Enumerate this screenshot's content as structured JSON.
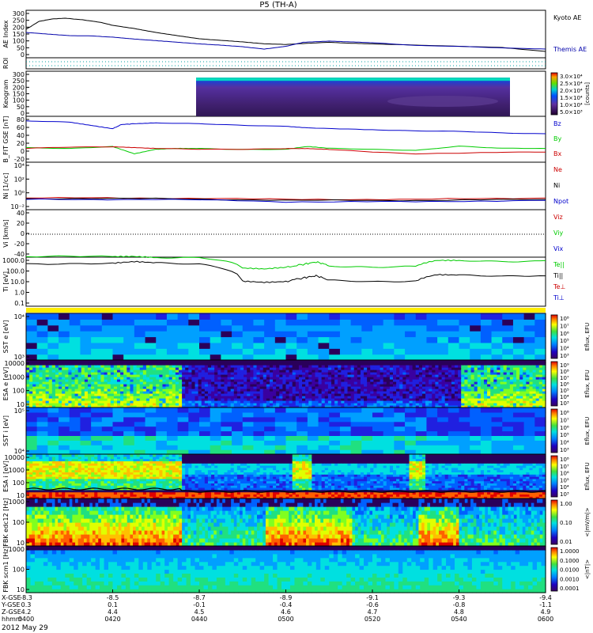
{
  "chart_data": {
    "type": "multi-panel",
    "title": "P5 (TH-A)",
    "date_label": "2012 May 29",
    "x_axis": {
      "rows": [
        {
          "label": "X-GSE",
          "values": [
            "-8.3",
            "-8.5",
            "-8.7",
            "-8.9",
            "-9.1",
            "-9.3",
            "-9.4"
          ]
        },
        {
          "label": "Y-GSE",
          "values": [
            "0.3",
            "0.1",
            "-0.1",
            "-0.4",
            "-0.6",
            "-0.8",
            "-1.1"
          ]
        },
        {
          "label": "Z-GSE",
          "values": [
            "4.2",
            "4.4",
            "4.5",
            "4.6",
            "4.7",
            "4.8",
            "4.9"
          ]
        },
        {
          "label": "hhmm",
          "values": [
            "0400",
            "0420",
            "0440",
            "0500",
            "0520",
            "0540",
            "0600"
          ]
        }
      ]
    },
    "panels": [
      {
        "id": "ae",
        "kind": "line",
        "ylabel": "AE Index",
        "ylim": [
          0,
          300
        ],
        "ticks": [
          "300",
          "250",
          "200",
          "150",
          "100",
          "50",
          "0"
        ],
        "series": [
          {
            "name": "Kyoto AE",
            "color": "#000000",
            "x": [
              0,
              3,
              6,
              9,
              13,
              17,
              20,
              25,
              30,
              35,
              40,
              45,
              50,
              55,
              60,
              64,
              70,
              75,
              80,
              90,
              100,
              110,
              120
            ],
            "y": [
              180,
              230,
              245,
              250,
              240,
              225,
              205,
              185,
              160,
              140,
              120,
              110,
              100,
              88,
              84,
              90,
              98,
              92,
              88,
              80,
              72,
              65,
              40
            ]
          },
          {
            "name": "Themis AE",
            "color": "#0000aa",
            "x": [
              0,
              5,
              10,
              15,
              20,
              25,
              30,
              35,
              40,
              45,
              50,
              55,
              60,
              64,
              70,
              75,
              80,
              90,
              100,
              110,
              120
            ],
            "y": [
              160,
              150,
              140,
              138,
              130,
              118,
              108,
              98,
              88,
              80,
              70,
              55,
              72,
              98,
              105,
              100,
              95,
              78,
              72,
              62,
              55
            ]
          }
        ]
      },
      {
        "id": "roi",
        "kind": "flags",
        "ylabel": "ROI",
        "ticks": []
      },
      {
        "id": "keogram",
        "kind": "image",
        "ylabel": "Keogram",
        "ylim": [
          0,
          300
        ],
        "ticks": [
          "300",
          "250",
          "200",
          "150",
          "100",
          "50",
          "0"
        ],
        "colorbar": {
          "label": "[counts]",
          "ticks": [
            "3.0×10⁴",
            "2.5×10⁴",
            "2.0×10⁴",
            "1.5×10⁴",
            "1.0×10⁴",
            "5.0×10³"
          ]
        },
        "data_coverage": [
          0.41,
          0.88
        ]
      },
      {
        "id": "bfield",
        "kind": "line",
        "ylabel": "B_FIT GSE [nT]",
        "ylim": [
          -20,
          80
        ],
        "ticks": [
          "80",
          "60",
          "40",
          "20",
          "0",
          "-20"
        ],
        "series": [
          {
            "name": "Bz",
            "color": "#0000cc",
            "x": [
              0,
              10,
              15,
              20,
              22,
              25,
              30,
              40,
              50,
              60,
              65,
              80,
              90,
              100,
              110,
              120
            ],
            "y": [
              70,
              67,
              60,
              53,
              62,
              64,
              66,
              64,
              60,
              58,
              55,
              51,
              48,
              47,
              44,
              42
            ]
          },
          {
            "name": "By",
            "color": "#00cc00",
            "x": [
              0,
              10,
              20,
              25,
              30,
              35,
              40,
              50,
              60,
              65,
              70,
              80,
              90,
              100,
              110,
              120
            ],
            "y": [
              12,
              10,
              14,
              -2,
              8,
              10,
              10,
              8,
              8,
              14,
              10,
              8,
              6,
              15,
              10,
              10
            ]
          },
          {
            "name": "Bx",
            "color": "#cc0000",
            "x": [
              0,
              10,
              20,
              25,
              30,
              40,
              50,
              60,
              65,
              70,
              80,
              90,
              100,
              110,
              120
            ],
            "y": [
              10,
              13,
              14,
              12,
              10,
              8,
              8,
              10,
              10,
              8,
              2,
              -2,
              0,
              2,
              2
            ]
          }
        ]
      },
      {
        "id": "density",
        "kind": "line",
        "ylabel": "Ni [1/cc]",
        "ylim_log": [
          0.01,
          10000
        ],
        "ticks": [
          "10⁴",
          "10²",
          "10⁰",
          "10⁻²"
        ],
        "series": [
          {
            "name": "Ne",
            "color": "#cc0000",
            "x": [
              0,
              30,
              60,
              90,
              120
            ],
            "y": [
              0.3,
              0.3,
              0.2,
              0.2,
              0.3
            ]
          },
          {
            "name": "Ni",
            "color": "#000000",
            "x": [
              0,
              30,
              60,
              90,
              120
            ],
            "y": [
              0.25,
              0.25,
              0.15,
              0.15,
              0.2
            ]
          },
          {
            "name": "Npot",
            "color": "#0000cc",
            "x": [
              0,
              30,
              60,
              90,
              120
            ],
            "y": [
              0.2,
              0.2,
              0.1,
              0.1,
              0.15
            ]
          }
        ]
      },
      {
        "id": "velocity",
        "kind": "line",
        "ylabel": "Vi [km/s]",
        "ylim": [
          -50,
          50
        ],
        "ticks": [
          "40",
          "20",
          "0",
          "-20",
          "-40"
        ],
        "series": [
          {
            "name": "Viz",
            "color": "#cc0000",
            "x": [],
            "y": []
          },
          {
            "name": "Viy",
            "color": "#00cc00",
            "x": [],
            "y": []
          },
          {
            "name": "Vix",
            "color": "#0000cc",
            "x": [],
            "y": []
          }
        ]
      },
      {
        "id": "temperature",
        "kind": "line",
        "ylabel": "Ti [eV]",
        "ylim_log": [
          0.1,
          1000
        ],
        "ticks": [
          "1000.0",
          "100.0",
          "10.0",
          "1.0",
          "0.1"
        ],
        "series": [
          {
            "name": "Te||",
            "color": "#00cc00",
            "x": [
              0,
              20,
              25,
              30,
              40,
              50,
              55,
              60,
              64,
              67,
              70,
              80,
              90,
              95,
              100,
              110,
              120
            ],
            "y": [
              1100,
              1100,
              1200,
              1000,
              950,
              120,
              100,
              140,
              250,
              400,
              200,
              160,
              170,
              500,
              500,
              450,
              520
            ]
          },
          {
            "name": "Ti||",
            "color": "#000000",
            "x": [
              0,
              20,
              25,
              30,
              40,
              50,
              55,
              60,
              64,
              67,
              70,
              80,
              90,
              95,
              100,
              110,
              120
            ],
            "y": [
              300,
              300,
              400,
              320,
              280,
              12,
              9,
              10,
              20,
              30,
              12,
              10,
              12,
              40,
              35,
              25,
              30
            ]
          }
        ],
        "legend_extra": [
          {
            "name": "Te⊥",
            "color": "#cc0000"
          },
          {
            "name": "Ti⊥",
            "color": "#0000cc"
          }
        ]
      },
      {
        "id": "sst_e",
        "kind": "spectrogram",
        "ylabel": "SST e [eV]",
        "ticks": [
          "10⁴",
          "10³"
        ],
        "colorbar_label": "Eflux, EFU",
        "colorbar_ticks": [
          "10⁸",
          "10⁷",
          "10⁶",
          "10⁵",
          "10⁴",
          "10³"
        ]
      },
      {
        "id": "esa_e",
        "kind": "spectrogram",
        "ylabel": "ESA e [eV]",
        "ticks": [
          "10000",
          "1000",
          "100",
          "10"
        ],
        "colorbar_label": "Eflux, EFU",
        "colorbar_ticks": [
          "10⁹",
          "10⁸",
          "10⁷",
          "10⁶",
          "10⁵",
          "10⁴",
          "10³"
        ]
      },
      {
        "id": "sst_i",
        "kind": "spectrogram",
        "ylabel": "SST i [eV]",
        "ticks": [
          "10⁵",
          "10⁴"
        ],
        "colorbar_label": "Eflux, EFU",
        "colorbar_ticks": [
          "10⁸",
          "10⁷",
          "10⁶",
          "10⁵",
          "10⁴",
          "10³"
        ]
      },
      {
        "id": "esa_i",
        "kind": "spectrogram",
        "ylabel": "ESA i [eV]",
        "ticks": [
          "10000",
          "1000",
          "100",
          "10"
        ],
        "colorbar_label": "Eflux, EFU",
        "colorbar_ticks": [
          "10⁸",
          "10⁷",
          "10⁶",
          "10⁵",
          "10⁴",
          "10³"
        ]
      },
      {
        "id": "fbk_e",
        "kind": "spectrogram",
        "ylabel": "FBK edc12 [Hz]",
        "ticks": [
          "1000",
          "100",
          "10"
        ],
        "colorbar_label": "<|mV/m|>",
        "colorbar_ticks": [
          "1.00",
          "0.10",
          "0.01"
        ]
      },
      {
        "id": "fbk_b",
        "kind": "spectrogram",
        "ylabel": "FBK scm1 [Hz]",
        "ticks": [
          "1000",
          "100",
          "10"
        ],
        "colorbar_label": "<|nT|>",
        "colorbar_ticks": [
          "1.0000",
          "0.1000",
          "0.0100",
          "0.0010",
          "0.0001"
        ]
      }
    ]
  }
}
